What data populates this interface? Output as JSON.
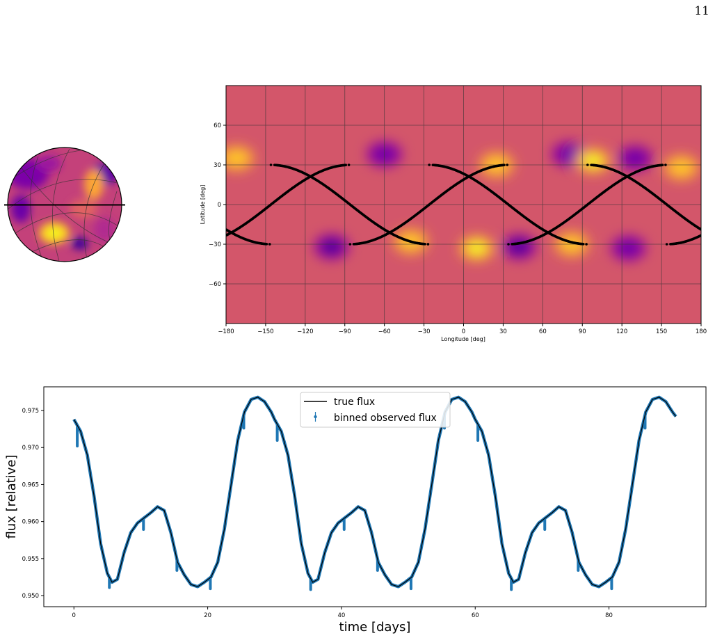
{
  "page": {
    "number": "11"
  },
  "figure": {
    "map": {
      "xlabel": "Longitude [deg]",
      "ylabel": "Latitude [deg]",
      "xticks": [
        -180,
        -150,
        -120,
        -90,
        -60,
        -30,
        0,
        30,
        60,
        90,
        120,
        150,
        180
      ],
      "yticks": [
        60,
        30,
        0,
        -30,
        -60
      ],
      "xlim": [
        -180,
        180
      ],
      "ylim": [
        -90,
        90
      ]
    },
    "lightcurve": {
      "xlabel": "time [days]",
      "ylabel": "flux [relative]",
      "xticks": [
        0,
        20,
        40,
        60,
        80
      ],
      "yticks": [
        "0.975",
        "0.970",
        "0.965",
        "0.960",
        "0.955",
        "0.950"
      ],
      "legend": {
        "true_label": "true flux",
        "obs_label": "binned observed flux",
        "placement": "top-center"
      },
      "colors": {
        "true": "#000000",
        "observed": "#1f77b4"
      }
    }
  },
  "chart_data": [
    {
      "type": "heatmap",
      "title": "",
      "xlabel": "Longitude [deg]",
      "ylabel": "Latitude [deg]",
      "xlim": [
        -180,
        180
      ],
      "ylim": [
        -90,
        90
      ],
      "grid": true,
      "colormap": "plasma",
      "spots": [
        {
          "lon": -172,
          "lat": 35,
          "amp": 0.5
        },
        {
          "lon": -100,
          "lat": -32,
          "amp": -1.0
        },
        {
          "lon": -60,
          "lat": 38,
          "amp": -0.8
        },
        {
          "lon": -40,
          "lat": -28,
          "amp": 0.7
        },
        {
          "lon": 10,
          "lat": -33,
          "amp": 1.0
        },
        {
          "lon": 25,
          "lat": 30,
          "amp": 0.7
        },
        {
          "lon": 42,
          "lat": -32,
          "amp": -1.0
        },
        {
          "lon": 80,
          "lat": 38,
          "amp": -0.5
        },
        {
          "lon": 82,
          "lat": -30,
          "amp": 0.6
        },
        {
          "lon": 98,
          "lat": 33,
          "amp": 1.0
        },
        {
          "lon": 125,
          "lat": -33,
          "amp": -0.8
        },
        {
          "lon": 130,
          "lat": 35,
          "amp": -0.6
        },
        {
          "lon": 165,
          "lat": 28,
          "amp": 0.5
        }
      ],
      "tracks": [
        {
          "lat_amplitude": 30,
          "phase_offsets_lon": [
            -146,
            -26,
            94
          ]
        },
        {
          "lat_amplitude": 30,
          "phase_offsets_lon": [
            -146,
            -26,
            94
          ]
        }
      ]
    },
    {
      "type": "line",
      "title": "",
      "xlabel": "time [days]",
      "ylabel": "flux [relative]",
      "xlim": [
        -4.5,
        94.5
      ],
      "ylim": [
        0.9485,
        0.9782
      ],
      "period_days": 30,
      "series": [
        {
          "name": "true flux",
          "color": "#000000",
          "x": [
            0,
            1,
            2,
            3,
            4,
            5,
            5.7,
            6.5,
            7.5,
            8.5,
            9.5,
            10.5,
            11.5,
            12.5,
            13.5,
            14.5,
            15.5,
            16.5,
            17.5,
            18.5,
            19.5,
            20.5,
            21.5,
            22.5,
            23.5,
            24.5,
            25.5,
            26.5,
            27.5,
            28.5,
            29.5,
            30,
            31,
            32,
            33,
            34,
            35,
            35.7,
            36.5,
            37.5,
            38.5,
            39.5,
            40.5,
            41.5,
            42.5,
            43.5,
            44.5,
            45.5,
            46.5,
            47.5,
            48.5,
            49.5,
            50.5,
            51.5,
            52.5,
            53.5,
            54.5,
            55.5,
            56.5,
            57.5,
            58.5,
            59.5,
            60,
            61,
            62,
            63,
            64,
            65,
            65.7,
            66.5,
            67.5,
            68.5,
            69.5,
            70.5,
            71.5,
            72.5,
            73.5,
            74.5,
            75.5,
            76.5,
            77.5,
            78.5,
            79.5,
            80.5,
            81.5,
            82.5,
            83.5,
            84.5,
            85.5,
            86.5,
            87.5,
            88.5,
            89.5,
            90
          ],
          "y": [
            0.9738,
            0.9722,
            0.969,
            0.9635,
            0.957,
            0.953,
            0.9518,
            0.9522,
            0.9558,
            0.9585,
            0.9598,
            0.9605,
            0.9612,
            0.962,
            0.9615,
            0.9585,
            0.9545,
            0.9528,
            0.9515,
            0.9512,
            0.9518,
            0.9525,
            0.9545,
            0.959,
            0.965,
            0.971,
            0.9748,
            0.9765,
            0.9768,
            0.9762,
            0.9748,
            0.9738,
            0.9722,
            0.969,
            0.9635,
            0.957,
            0.953,
            0.9518,
            0.9522,
            0.9558,
            0.9585,
            0.9598,
            0.9605,
            0.9612,
            0.962,
            0.9615,
            0.9585,
            0.9545,
            0.9528,
            0.9515,
            0.9512,
            0.9518,
            0.9525,
            0.9545,
            0.959,
            0.965,
            0.971,
            0.9748,
            0.9765,
            0.9768,
            0.9762,
            0.9748,
            0.9738,
            0.9722,
            0.969,
            0.9635,
            0.957,
            0.953,
            0.9518,
            0.9522,
            0.9558,
            0.9585,
            0.9598,
            0.9605,
            0.9612,
            0.962,
            0.9615,
            0.9585,
            0.9545,
            0.9528,
            0.9515,
            0.9512,
            0.9518,
            0.9525,
            0.9545,
            0.959,
            0.965,
            0.971,
            0.9748,
            0.9765,
            0.9768,
            0.9762,
            0.9748,
            0.9742
          ]
        },
        {
          "name": "binned observed flux",
          "color": "#1f77b4",
          "dips": [
            {
              "t": 0.5,
              "depth": 0.0028
            },
            {
              "t": 5.3,
              "depth": 0.0014
            },
            {
              "t": 10.4,
              "depth": 0.0015
            },
            {
              "t": 15.4,
              "depth": 0.0015
            },
            {
              "t": 20.4,
              "depth": 0.0015
            },
            {
              "t": 25.4,
              "depth": 0.0018
            },
            {
              "t": 30.4,
              "depth": 0.0022
            },
            {
              "t": 35.4,
              "depth": 0.0015
            },
            {
              "t": 40.4,
              "depth": 0.0015
            },
            {
              "t": 45.4,
              "depth": 0.0015
            },
            {
              "t": 50.4,
              "depth": 0.0015
            },
            {
              "t": 55.4,
              "depth": 0.0018
            },
            {
              "t": 60.4,
              "depth": 0.0022
            },
            {
              "t": 65.4,
              "depth": 0.0015
            },
            {
              "t": 70.4,
              "depth": 0.0015
            },
            {
              "t": 75.4,
              "depth": 0.0015
            },
            {
              "t": 80.4,
              "depth": 0.0015
            },
            {
              "t": 85.4,
              "depth": 0.0018
            }
          ]
        }
      ]
    }
  ]
}
